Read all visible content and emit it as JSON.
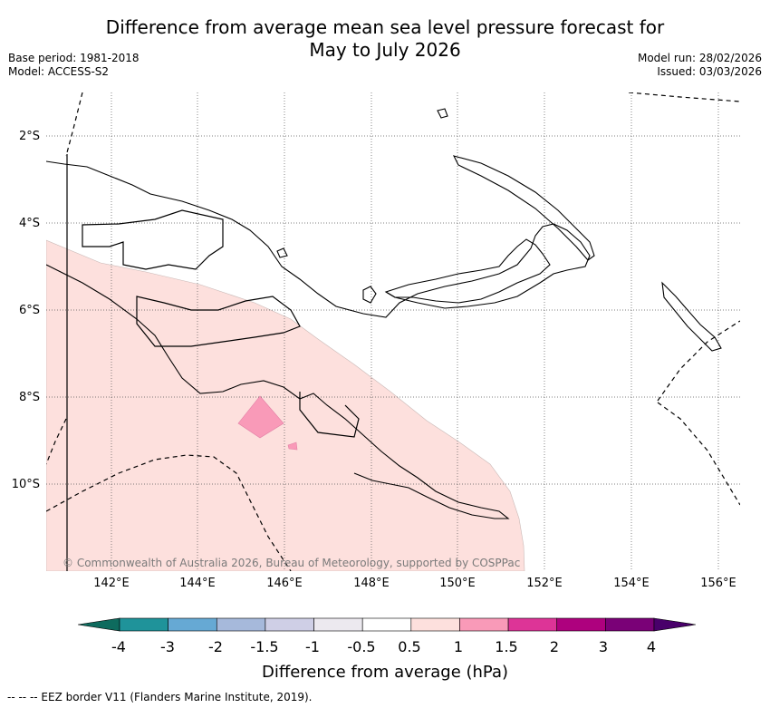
{
  "title_line1": "Difference from average mean sea level pressure forecast for",
  "title_line2": "May to July 2026",
  "base_period": "Base period: 1981-2018",
  "model": "Model: ACCESS-S2",
  "model_run": "Model run: 28/02/2026",
  "issued": "Issued: 03/03/2026",
  "lat_labels": [
    "2°S",
    "4°S",
    "6°S",
    "8°S",
    "10°S"
  ],
  "lon_labels": [
    "142°E",
    "144°E",
    "146°E",
    "148°E",
    "150°E",
    "152°E",
    "154°E",
    "156°E"
  ],
  "copyright": "© Commonwealth of Australia 2026, Bureau of Meteorology, supported by COSPPac",
  "colorbar": {
    "title": "Difference from average (hPa)",
    "ticks": [
      "-4",
      "-3",
      "-2",
      "-1.5",
      "-1",
      "-0.5",
      "0.5",
      "1",
      "1.5",
      "2",
      "3",
      "4"
    ],
    "colors": [
      "#0e6b5e",
      "#1f939a",
      "#66a9d4",
      "#a6b9db",
      "#cfcfe6",
      "#ece9ef",
      "#ffffff",
      "#fde0dd",
      "#f99ab8",
      "#dd3497",
      "#ae017e",
      "#7a0177",
      "#49006a"
    ]
  },
  "footnote": "--  --  -- EEZ border V11 (Flanders Marine Institute, 2019)."
}
